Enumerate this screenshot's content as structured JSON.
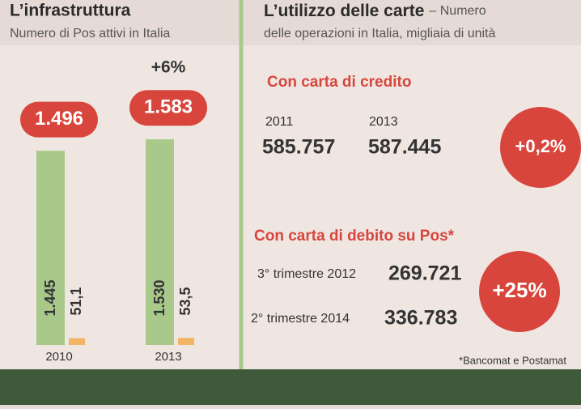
{
  "chart_data": {
    "type": "bar",
    "title": "L’infrastruttura",
    "subtitle": "Numero di Pos attivi in Italia",
    "categories": [
      "2010",
      "2013"
    ],
    "series": [
      {
        "color": "#a8c98a",
        "values": [
          1445,
          1530
        ],
        "value_labels": [
          "1.445",
          "1.530"
        ]
      },
      {
        "color": "#f2b565",
        "values": [
          51.1,
          53.5
        ],
        "value_labels": [
          "51,1",
          "53,5"
        ]
      }
    ],
    "totals": [
      1496,
      1583
    ],
    "total_labels": [
      "1.496",
      "1.583"
    ],
    "annotation": "+6%"
  },
  "usage": {
    "title": "L’utilizzo delle carte",
    "title_note": "– Numero",
    "subtitle": "delle operazioni in Italia, migliaia di unità",
    "credit": {
      "heading": "Con carta di credito",
      "years": [
        "2011",
        "2013"
      ],
      "values": [
        "585.757",
        "587.445"
      ],
      "change": "+0,2%"
    },
    "debit": {
      "heading": "Con carta di debito su Pos*",
      "rows": [
        [
          "3° trimestre 2012",
          "269.721"
        ],
        [
          "2° trimestre 2014",
          "336.783"
        ]
      ],
      "change": "+25%"
    },
    "footnote": "*Bancomat e Postamat"
  }
}
